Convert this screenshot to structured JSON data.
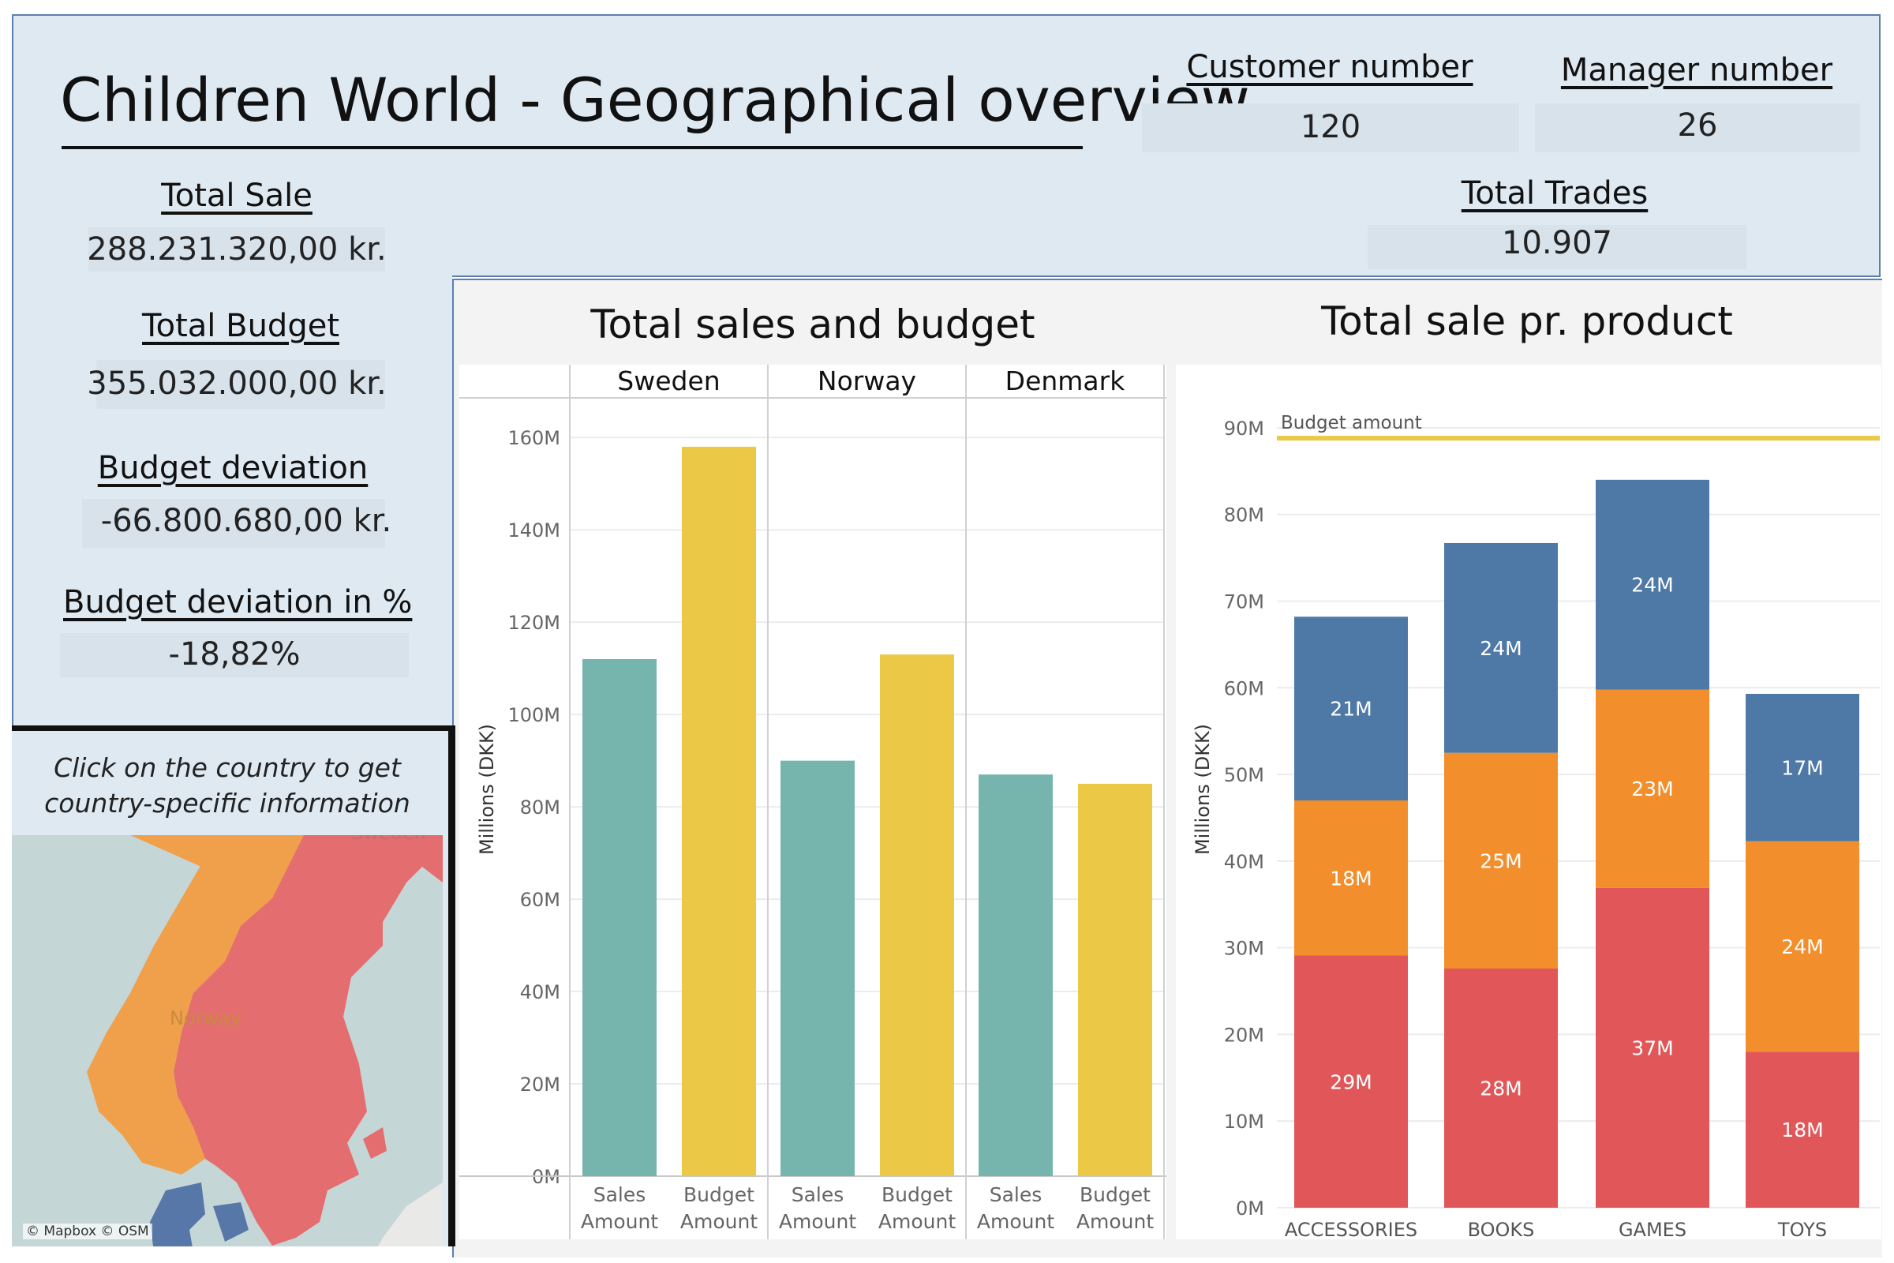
{
  "title": "Children World - Geographical overview",
  "kpis": {
    "total_sale": {
      "label": "Total Sale",
      "value": "288.231.320,00 kr."
    },
    "total_budget": {
      "label": "Total Budget",
      "value": "355.032.000,00 kr."
    },
    "budget_deviation": {
      "label": "Budget deviation",
      "value": "-66.800.680,00 kr."
    },
    "budget_deviation_pct": {
      "label": "Budget deviation in %",
      "value": "-18,82%"
    },
    "customer_number": {
      "label": "Customer number",
      "value": "120"
    },
    "manager_number": {
      "label": "Manager number",
      "value": "26"
    },
    "total_trades": {
      "label": "Total Trades",
      "value": "10.907"
    }
  },
  "map": {
    "instruction_line1": "Click on the country to get",
    "instruction_line2": "country-specific information",
    "labels": [
      "Sweden",
      "Norway"
    ],
    "credit": "© Mapbox © OSM",
    "colors": {
      "norway": "#f0a04b",
      "sweden": "#e36d6f",
      "denmark": "#5677a8",
      "sea": "#c5d6d7",
      "land": "#e9e9e7"
    }
  },
  "chart_data": [
    {
      "type": "bar",
      "title": "Total sales and budget",
      "ylabel": "Millions (DKK)",
      "panels": [
        "Sweden",
        "Norway",
        "Denmark"
      ],
      "categories": [
        "Sales\nAmount",
        "Budget\nAmount"
      ],
      "series": [
        {
          "panel": "Sweden",
          "values": [
            112,
            158
          ]
        },
        {
          "panel": "Norway",
          "values": [
            90,
            113
          ]
        },
        {
          "panel": "Denmark",
          "values": [
            87,
            85
          ]
        }
      ],
      "colors": {
        "Sales\nAmount": "#76b5ae",
        "Budget\nAmount": "#ebc845"
      },
      "ylim": [
        0,
        165
      ],
      "yticks": [
        0,
        20,
        40,
        60,
        80,
        100,
        120,
        140,
        160
      ],
      "ytick_labels": [
        "0M",
        "20M",
        "40M",
        "60M",
        "80M",
        "100M",
        "120M",
        "140M",
        "160M"
      ],
      "grid": true
    },
    {
      "type": "bar",
      "stacked": true,
      "title": "Total sale pr. product",
      "ylabel": "Millions (DKK)",
      "categories": [
        "ACCESSORIES",
        "BOOKS",
        "GAMES",
        "TOYS"
      ],
      "series": [
        {
          "values": [
            29.1,
            27.6,
            36.9,
            18.0
          ],
          "labels": [
            "29M",
            "28M",
            "37M",
            "18M"
          ],
          "color": "#e15759"
        },
        {
          "values": [
            17.9,
            24.9,
            22.9,
            24.3
          ],
          "labels": [
            "18M",
            "25M",
            "23M",
            "24M"
          ],
          "color": "#f28e2b"
        },
        {
          "values": [
            21.2,
            24.2,
            24.2,
            17.0
          ],
          "labels": [
            "21M",
            "24M",
            "24M",
            "17M"
          ],
          "color": "#4e79a7"
        }
      ],
      "reference_line": {
        "label": "Budget amount",
        "value": 88.8,
        "color": "#ebc845"
      },
      "ylim": [
        0,
        92
      ],
      "yticks": [
        0,
        10,
        20,
        30,
        40,
        50,
        60,
        70,
        80,
        90
      ],
      "ytick_labels": [
        "0M",
        "10M",
        "20M",
        "30M",
        "40M",
        "50M",
        "60M",
        "70M",
        "80M",
        "90M"
      ],
      "grid": true
    }
  ]
}
